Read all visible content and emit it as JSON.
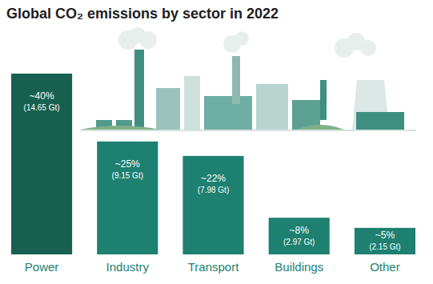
{
  "chart_data": {
    "type": "bar",
    "title": "Global CO₂ emissions by sector in 2022",
    "categories": [
      "Power",
      "Industry",
      "Transport",
      "Buildings",
      "Other"
    ],
    "values": [
      14.65,
      9.15,
      7.98,
      2.97,
      2.15
    ],
    "value_labels": [
      "(14.65 Gt)",
      "(9.15 Gt)",
      "(7.98 Gt)",
      "(2.97 Gt)",
      "(2.15 Gt)"
    ],
    "share_labels": [
      "~40%",
      "~25%",
      "~22%",
      "~8%",
      "~5%"
    ],
    "colors": [
      "#17604f",
      "#1d8070",
      "#1d8070",
      "#1d8070",
      "#1d8070"
    ],
    "data_labels": true,
    "tick_labels": "x",
    "grid": false
  }
}
